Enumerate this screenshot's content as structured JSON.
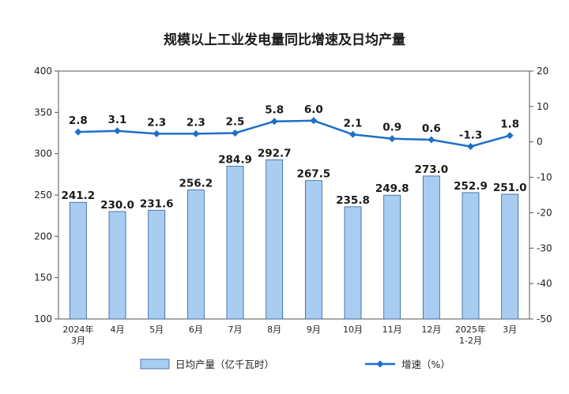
{
  "chart_data": {
    "type": "bar",
    "title": "规模以上工业发电量同比增速及日均产量",
    "categories": [
      [
        "2024年",
        "3月"
      ],
      [
        "4月"
      ],
      [
        "5月"
      ],
      [
        "6月"
      ],
      [
        "7月"
      ],
      [
        "8月"
      ],
      [
        "9月"
      ],
      [
        "10月"
      ],
      [
        "11月"
      ],
      [
        "12月"
      ],
      [
        "2025年",
        "1-2月"
      ],
      [
        "3月"
      ]
    ],
    "series": [
      {
        "name": "日均产量（亿千瓦时）",
        "type": "bar",
        "axis": "left",
        "color": "#a9cdf0",
        "values": [
          241.2,
          230.0,
          231.6,
          256.2,
          284.9,
          292.7,
          267.5,
          235.8,
          249.8,
          273.0,
          252.9,
          251.0
        ],
        "labels": [
          "241.2",
          "230.0",
          "231.6",
          "256.2",
          "284.9",
          "292.7",
          "267.5",
          "235.8",
          "249.8",
          "273.0",
          "252.9",
          "251.0"
        ]
      },
      {
        "name": "增速（%）",
        "type": "line",
        "axis": "right",
        "color": "#1e6fc9",
        "values": [
          2.8,
          3.1,
          2.3,
          2.3,
          2.5,
          5.8,
          6.0,
          2.1,
          0.9,
          0.6,
          -1.3,
          1.8
        ],
        "labels": [
          "2.8",
          "3.1",
          "2.3",
          "2.3",
          "2.5",
          "5.8",
          "6.0",
          "2.1",
          "0.9",
          "0.6",
          "-1.3",
          "1.8"
        ]
      }
    ],
    "y_left": {
      "min": 100,
      "max": 400,
      "step": 50,
      "ticks": [
        "100",
        "150",
        "200",
        "250",
        "300",
        "350",
        "400"
      ]
    },
    "y_right": {
      "min": -50,
      "max": 20,
      "step": 10,
      "ticks": [
        "-50",
        "-40",
        "-30",
        "-20",
        "-10",
        "0",
        "10",
        "20"
      ]
    },
    "legend_position": "bottom",
    "grid": false
  }
}
